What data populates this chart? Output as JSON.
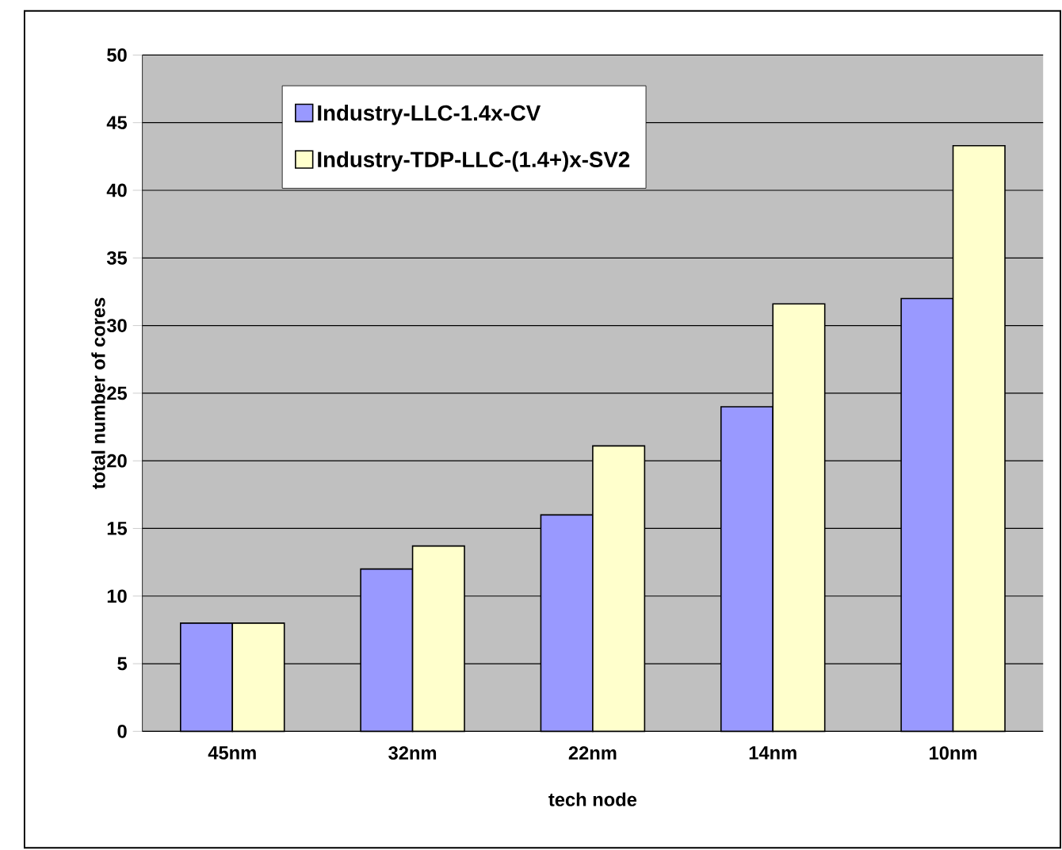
{
  "chart_data": {
    "type": "bar",
    "xlabel": "tech node",
    "ylabel": "total number of cores",
    "categories": [
      "45nm",
      "32nm",
      "22nm",
      "14nm",
      "10nm"
    ],
    "series": [
      {
        "name": "Industry-LLC-1.4x-CV",
        "color": "#9999ff",
        "values": [
          8,
          12,
          16,
          24,
          32
        ]
      },
      {
        "name": "Industry-TDP-LLC-(1.4+)x-SV2",
        "color": "#ffffcc",
        "values": [
          8,
          13.7,
          21.1,
          31.6,
          43.3
        ]
      }
    ],
    "ylim": [
      0,
      50
    ],
    "yticks": [
      0,
      5,
      10,
      15,
      20,
      25,
      30,
      35,
      40,
      45,
      50
    ],
    "grid": "y",
    "legend": "top left"
  }
}
